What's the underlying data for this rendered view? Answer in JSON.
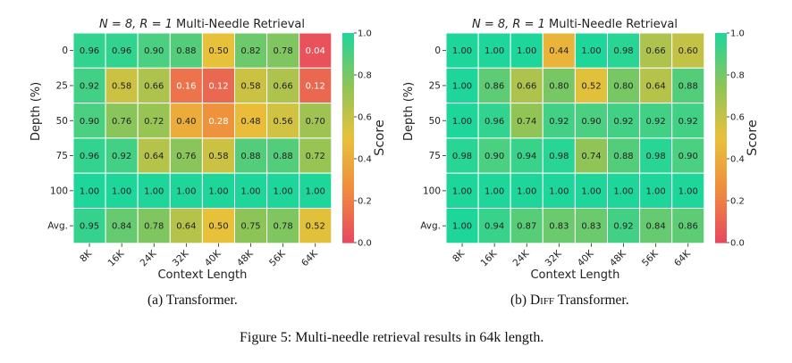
{
  "colors": {
    "scale": [
      "#e8475f",
      "#ef8c3f",
      "#e8c13a",
      "#8dc458",
      "#1fd69a"
    ],
    "text_dark": "#222222",
    "text_light": "#ffffff"
  },
  "colorbar": {
    "label": "Score",
    "ticks": [
      "0.0",
      "0.2",
      "0.4",
      "0.6",
      "0.8",
      "1.0"
    ],
    "min": 0.0,
    "max": 1.0
  },
  "chart_data": [
    {
      "type": "heatmap",
      "title_math": "N = 8, R = 1",
      "title_text": "Multi-Needle Retrieval",
      "xlabel": "Context Length",
      "ylabel": "Depth (%)",
      "x_categories": [
        "8K",
        "16K",
        "24K",
        "32K",
        "40K",
        "48K",
        "56K",
        "64K"
      ],
      "y_categories": [
        "0",
        "25",
        "50",
        "75",
        "100",
        "Avg."
      ],
      "values": [
        [
          0.96,
          0.96,
          0.9,
          0.88,
          0.5,
          0.82,
          0.78,
          0.04
        ],
        [
          0.92,
          0.58,
          0.66,
          0.16,
          0.12,
          0.58,
          0.66,
          0.12
        ],
        [
          0.9,
          0.76,
          0.72,
          0.4,
          0.28,
          0.48,
          0.56,
          0.7
        ],
        [
          0.96,
          0.92,
          0.64,
          0.76,
          0.58,
          0.88,
          0.88,
          0.72
        ],
        [
          1.0,
          1.0,
          1.0,
          1.0,
          1.0,
          1.0,
          1.0,
          1.0
        ],
        [
          0.95,
          0.84,
          0.78,
          0.64,
          0.5,
          0.75,
          0.78,
          0.52
        ]
      ],
      "caption_prefix": "(a) Transformer.",
      "caption_sc": "",
      "caption_suffix": ""
    },
    {
      "type": "heatmap",
      "title_math": "N = 8, R = 1",
      "title_text": "Multi-Needle Retrieval",
      "xlabel": "Context Length",
      "ylabel": "Depth (%)",
      "x_categories": [
        "8K",
        "16K",
        "24K",
        "32K",
        "40K",
        "48K",
        "56K",
        "64K"
      ],
      "y_categories": [
        "0",
        "25",
        "50",
        "75",
        "100",
        "Avg."
      ],
      "values": [
        [
          1.0,
          1.0,
          1.0,
          0.44,
          1.0,
          0.98,
          0.66,
          0.6
        ],
        [
          1.0,
          0.86,
          0.66,
          0.8,
          0.52,
          0.8,
          0.64,
          0.88
        ],
        [
          1.0,
          0.96,
          0.74,
          0.92,
          0.9,
          0.92,
          0.92,
          0.92
        ],
        [
          0.98,
          0.9,
          0.94,
          0.98,
          0.74,
          0.88,
          0.98,
          0.9
        ],
        [
          1.0,
          1.0,
          1.0,
          1.0,
          1.0,
          1.0,
          1.0,
          1.0
        ],
        [
          1.0,
          0.94,
          0.87,
          0.83,
          0.83,
          0.92,
          0.84,
          0.86
        ]
      ],
      "caption_prefix": "(b) D",
      "caption_sc": "iff",
      "caption_suffix": " Transformer."
    }
  ],
  "figure_caption": "Figure 5: Multi-needle retrieval results in 64k length."
}
